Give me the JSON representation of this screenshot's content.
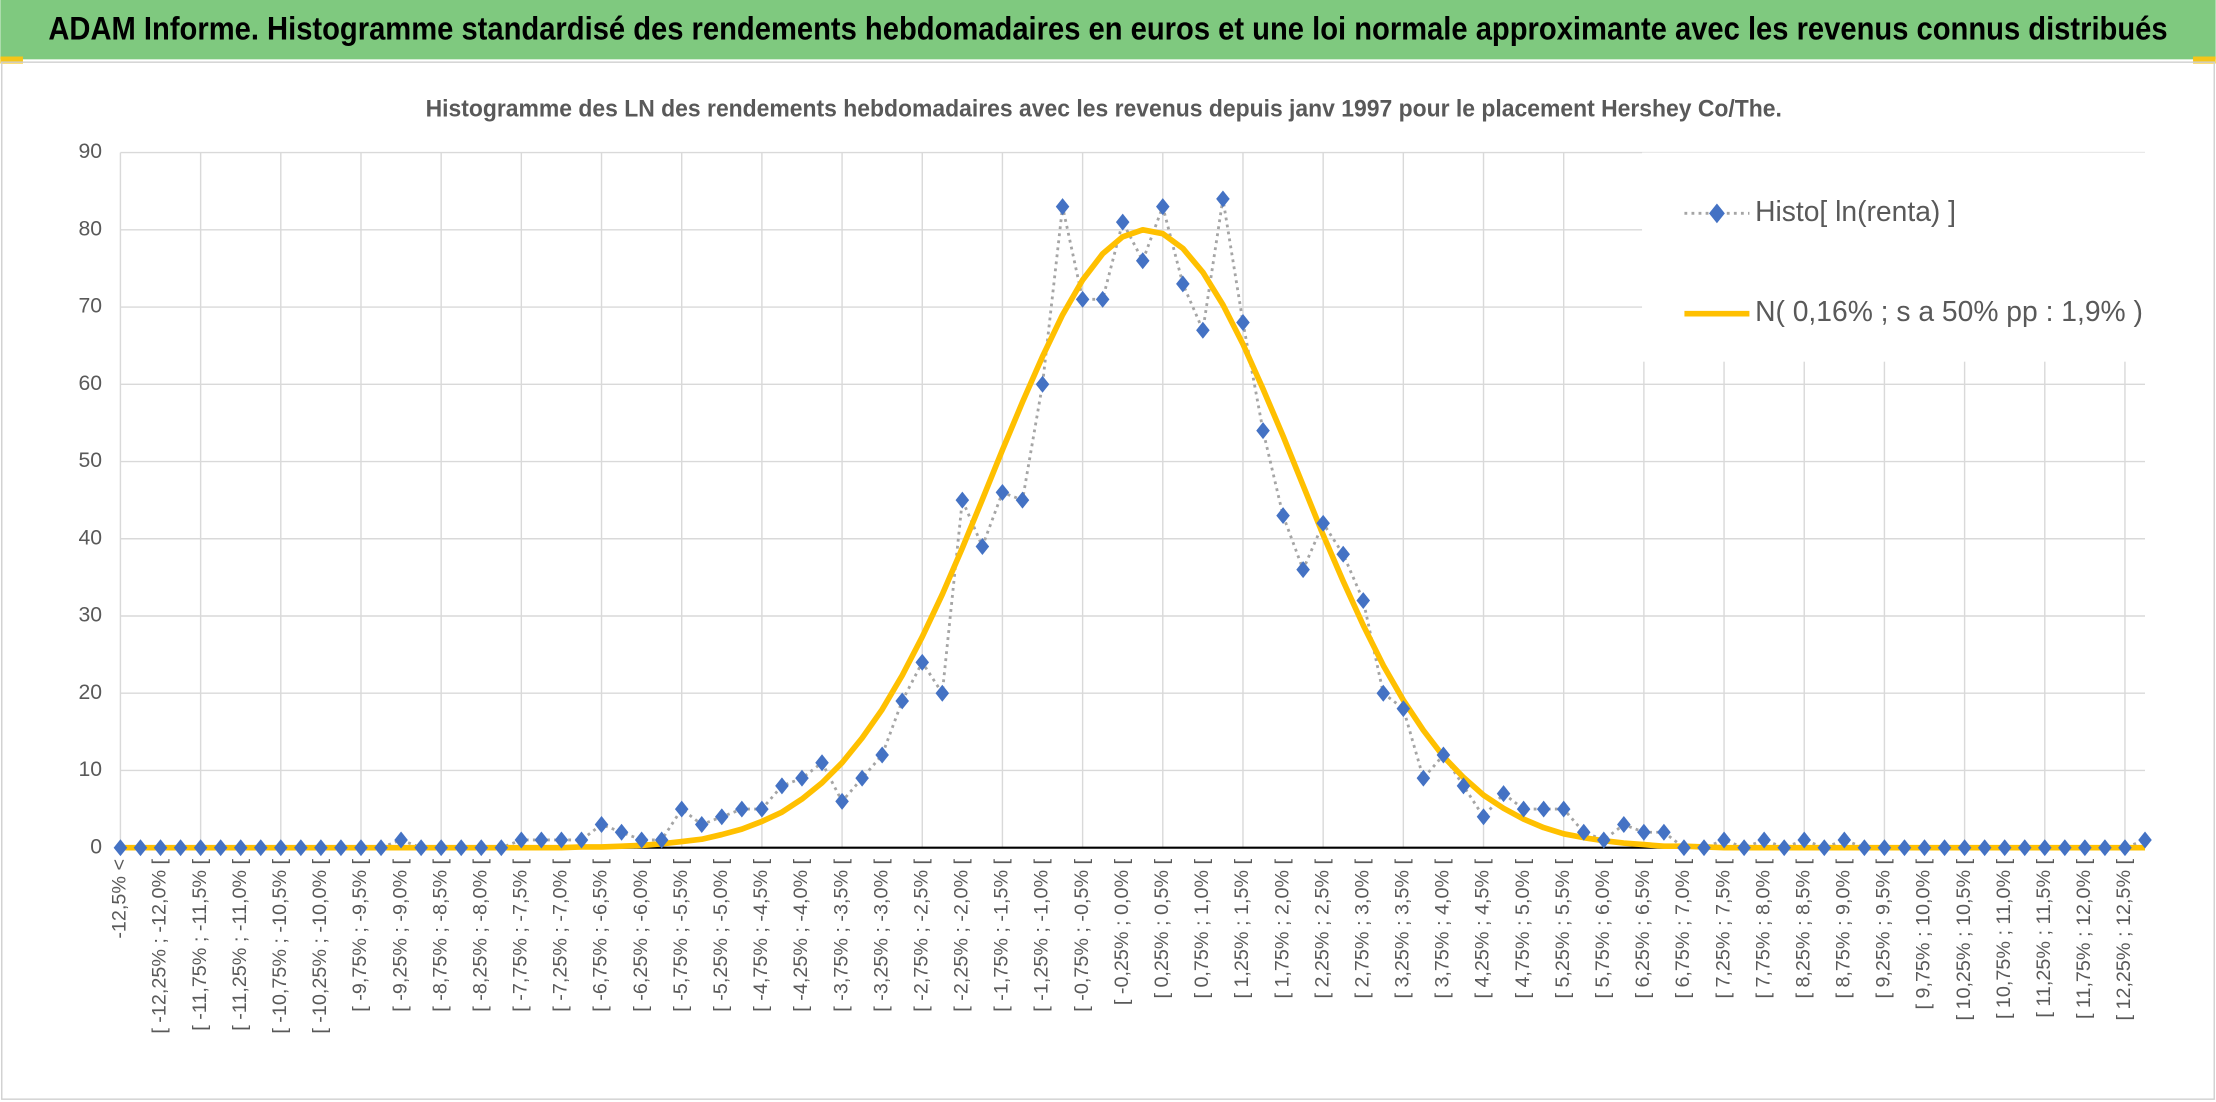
{
  "header": {
    "title": "ADAM Informe. Histogramme standardisé des rendements hebdomadaires en euros et une loi normale approximante avec les revenus connus distribués"
  },
  "chart_data": {
    "type": "line",
    "title": "Histogramme des LN des rendements hebdomadaires avec les revenus depuis janv 1997 pour le placement Hershey Co/The.",
    "categories": [
      "-12,5% <",
      null,
      "[ -12,25% ; -12,0% [",
      null,
      "[ -11,75% ; -11,5% [",
      null,
      "[ -11,25% ; -11,0% [",
      null,
      "[ -10,75% ; -10,5% [",
      null,
      "[ -10,25% ; -10,0% [",
      null,
      "[ -9,75% ; -9,5% [",
      null,
      "[ -9,25% ; -9,0% [",
      null,
      "[ -8,75% ; -8,5% [",
      null,
      "[ -8,25% ; -8,0% [",
      null,
      "[ -7,75% ; -7,5% [",
      null,
      "[ -7,25% ; -7,0% [",
      null,
      "[ -6,75% ; -6,5% [",
      null,
      "[ -6,25% ; -6,0% [",
      null,
      "[ -5,75% ; -5,5% [",
      null,
      "[ -5,25% ; -5,0% [",
      null,
      "[ -4,75% ; -4,5% [",
      null,
      "[ -4,25% ; -4,0% [",
      null,
      "[ -3,75% ; -3,5% [",
      null,
      "[ -3,25% ; -3,0% [",
      null,
      "[ -2,75% ; -2,5% [",
      null,
      "[ -2,25% ; -2,0% [",
      null,
      "[ -1,75% ; -1,5% [",
      null,
      "[ -1,25% ; -1,0% [",
      null,
      "[ -0,75% ; -0,5% [",
      null,
      "[ -0,25% ; 0,0% [",
      null,
      "[ 0,25% ; 0,5% [",
      null,
      "[ 0,75% ; 1,0% [",
      null,
      "[ 1,25% ; 1,5% [",
      null,
      "[ 1,75% ; 2,0% [",
      null,
      "[ 2,25% ; 2,5% [",
      null,
      "[ 2,75% ; 3,0% [",
      null,
      "[ 3,25% ; 3,5% [",
      null,
      "[ 3,75% ; 4,0% [",
      null,
      "[ 4,25% ; 4,5% [",
      null,
      "[ 4,75% ; 5,0% [",
      null,
      "[ 5,25% ; 5,5% [",
      null,
      "[ 5,75% ; 6,0% [",
      null,
      "[ 6,25% ; 6,5% [",
      null,
      "[ 6,75% ; 7,0% [",
      null,
      "[ 7,25% ; 7,5% [",
      null,
      "[ 7,75% ; 8,0% [",
      null,
      "[ 8,25% ; 8,5% [",
      null,
      "[ 8,75% ; 9,0% [",
      null,
      "[ 9,25% ; 9,5% [",
      null,
      "[ 9,75% ; 10,0% [",
      null,
      "[ 10,25% ; 10,5% [",
      null,
      "[ 10,75% ; 11,0% [",
      null,
      "[ 11,25% ; 11,5% [",
      null,
      "[ 11,75% ; 12,0% [",
      null,
      "[ 12,25% ; 12,5% [",
      null
    ],
    "series": [
      {
        "name": "Histo[ ln(renta) ]",
        "color": "#4472c4",
        "line_color": "#a5a5a5",
        "marker": "diamond",
        "values": [
          0,
          0,
          0,
          0,
          0,
          0,
          0,
          0,
          0,
          0,
          0,
          0,
          0,
          0,
          1,
          0,
          0,
          0,
          0,
          0,
          1,
          1,
          1,
          1,
          3,
          2,
          1,
          1,
          5,
          3,
          4,
          5,
          5,
          8,
          9,
          11,
          6,
          9,
          12,
          19,
          24,
          20,
          45,
          39,
          46,
          45,
          60,
          83,
          71,
          71,
          81,
          76,
          83,
          73,
          67,
          84,
          68,
          54,
          43,
          36,
          42,
          38,
          32,
          20,
          18,
          9,
          12,
          8,
          4,
          7,
          5,
          5,
          5,
          2,
          1,
          3,
          2,
          2,
          0,
          0,
          1,
          0,
          1,
          0,
          1,
          0,
          1,
          0,
          0,
          0,
          0,
          0,
          0,
          0,
          0,
          0,
          0,
          0,
          0,
          0,
          0,
          1
        ]
      },
      {
        "name": "N( 0,16% ; s a 50% pp : 1,9% )",
        "color": "#ffc000",
        "values": [
          0,
          0,
          0,
          0,
          0,
          0,
          0,
          0,
          0,
          0,
          0,
          0,
          0,
          0,
          0,
          0,
          0,
          0,
          0,
          0,
          0,
          0,
          0,
          0.1,
          0.1,
          0.2,
          0.3,
          0.5,
          0.8,
          1.1,
          1.7,
          2.4,
          3.4,
          4.6,
          6.3,
          8.4,
          11.0,
          14.2,
          17.9,
          22.3,
          27.3,
          32.8,
          38.8,
          45.1,
          51.5,
          57.7,
          63.6,
          69.0,
          73.5,
          76.9,
          79.1,
          80.0,
          79.5,
          77.6,
          74.5,
          70.3,
          65.2,
          59.4,
          53.3,
          46.9,
          40.5,
          34.5,
          28.8,
          23.6,
          19.1,
          15.2,
          11.8,
          9.1,
          6.8,
          5.1,
          3.7,
          2.6,
          1.8,
          1.3,
          0.9,
          0.6,
          0.4,
          0.2,
          0.2,
          0.1,
          0,
          0,
          0,
          0,
          0,
          0,
          0,
          0,
          0,
          0,
          0,
          0,
          0,
          0,
          0,
          0,
          0,
          0,
          0,
          0,
          0,
          0
        ]
      }
    ],
    "ylim": [
      0,
      90
    ],
    "yticks": [
      0,
      10,
      20,
      30,
      40,
      50,
      60,
      70,
      80,
      90
    ],
    "grid": true,
    "legend": "top-right"
  }
}
